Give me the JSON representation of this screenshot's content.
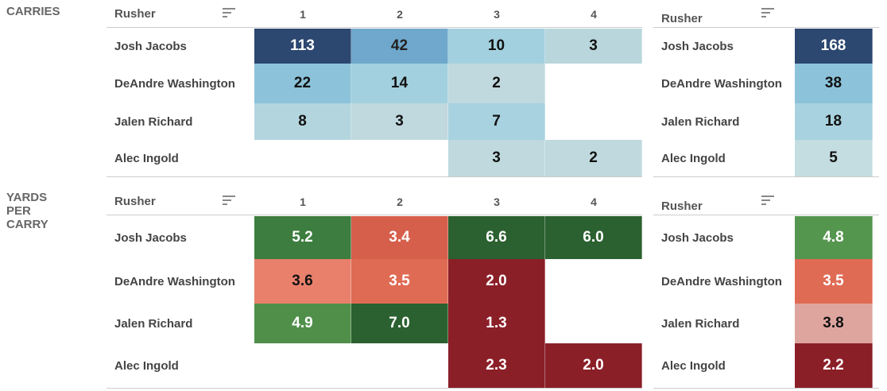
{
  "sections": [
    {
      "label": "CARRIES",
      "columns": [
        "1",
        "2",
        "3",
        "4"
      ],
      "rows": [
        {
          "name": "Josh Jacobs",
          "values": [
            "113",
            "42",
            "10",
            "3"
          ],
          "colors": [
            "#2c4770",
            "#6fa8cc",
            "#a3d0de",
            "#b8d6dc"
          ],
          "text": [
            "#ffffff",
            "#222222",
            "#111111",
            "#111111"
          ],
          "total": "168",
          "total_color": "#2c4770",
          "total_text": "#ffffff"
        },
        {
          "name": "DeAndre Washington",
          "values": [
            "22",
            "14",
            "2",
            ""
          ],
          "colors": [
            "#8cc3db",
            "#a3d0de",
            "#bfd9de",
            ""
          ],
          "text": [
            "#111111",
            "#111111",
            "#111111",
            ""
          ],
          "total": "38",
          "total_color": "#8cc3db",
          "total_text": "#111111"
        },
        {
          "name": "Jalen Richard",
          "values": [
            "8",
            "3",
            "7",
            ""
          ],
          "colors": [
            "#b3d6de",
            "#bfd9de",
            "#a8d2df",
            ""
          ],
          "text": [
            "#111111",
            "#111111",
            "#111111",
            ""
          ],
          "total": "18",
          "total_color": "#a8d2df",
          "total_text": "#111111"
        },
        {
          "name": "Alec Ingold",
          "values": [
            "",
            "",
            "3",
            "2"
          ],
          "colors": [
            "",
            "",
            "#bfd9de",
            "#bfd9de"
          ],
          "text": [
            "",
            "",
            "#111111",
            "#111111"
          ],
          "total": "5",
          "total_color": "#c4dde1",
          "total_text": "#111111"
        }
      ],
      "rusher_header": "Rusher"
    },
    {
      "label": "YARDS\nPER\nCARRY",
      "columns": [
        "1",
        "2",
        "3",
        "4"
      ],
      "rows": [
        {
          "name": "Josh Jacobs",
          "values": [
            "5.2",
            "3.4",
            "6.6",
            "6.0"
          ],
          "colors": [
            "#3d7d3f",
            "#d65f4c",
            "#2b6130",
            "#2b6130"
          ],
          "text": [
            "#ffffff",
            "#ffffff",
            "#ffffff",
            "#ffffff"
          ],
          "total": "4.8",
          "total_color": "#55964f",
          "total_text": "#ffffff"
        },
        {
          "name": "DeAndre Washington",
          "values": [
            "3.6",
            "3.5",
            "2.0",
            ""
          ],
          "colors": [
            "#e8806c",
            "#e06b55",
            "#8b1f28",
            ""
          ],
          "text": [
            "#111111",
            "#ffffff",
            "#ffffff",
            ""
          ],
          "total": "3.5",
          "total_color": "#e06b55",
          "total_text": "#ffffff"
        },
        {
          "name": "Jalen Richard",
          "values": [
            "4.9",
            "7.0",
            "1.3",
            ""
          ],
          "colors": [
            "#4f8f4a",
            "#2b6130",
            "#8b1f28",
            ""
          ],
          "text": [
            "#ffffff",
            "#ffffff",
            "#ffffff",
            ""
          ],
          "total": "3.8",
          "total_color": "#dea59f",
          "total_text": "#111111"
        },
        {
          "name": "Alec Ingold",
          "values": [
            "",
            "",
            "2.3",
            "2.0"
          ],
          "colors": [
            "",
            "",
            "#8b1f28",
            "#8b1f28"
          ],
          "text": [
            "",
            "",
            "#ffffff",
            "#ffffff"
          ],
          "total": "2.2",
          "total_color": "#8b1f28",
          "total_text": "#ffffff"
        }
      ],
      "rusher_header": "Rusher"
    }
  ]
}
